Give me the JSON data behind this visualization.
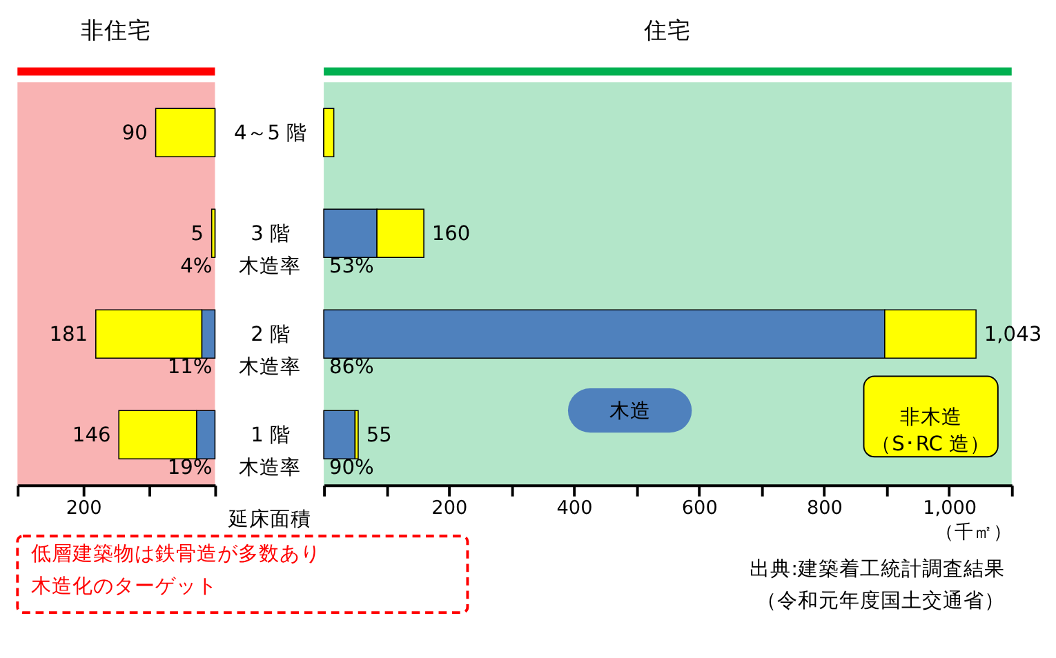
{
  "chart_data": [
    {
      "type": "bar",
      "title": "非住宅",
      "orientation": "horizontal",
      "stacked": true,
      "tick_labels": "x",
      "categories": [
        null,
        null,
        null,
        null
      ],
      "series": [
        {
          "color": "#4f81bd",
          "values": [
            0,
            0,
            20,
            28
          ]
        },
        {
          "color": "#ffff00",
          "values": [
            90,
            5,
            161,
            118
          ]
        }
      ],
      "totals": [
        "90",
        "5",
        "181",
        "146"
      ],
      "xlim": [
        300,
        0
      ],
      "xticks": [
        {
          "value": 0,
          "label": null
        },
        {
          "value": 100,
          "label": null
        },
        200,
        {
          "value": 300,
          "label": null
        }
      ],
      "grid": false,
      "annotations": [
        "4%",
        "11%",
        "19%",
        "低層建築物は鉄骨造が多数あり",
        "木造化のターゲット"
      ]
    },
    {
      "type": "bar",
      "title": "住宅",
      "orientation": "horizontal",
      "stacked": true,
      "categories": [
        "4～5 階",
        "3 階",
        "2 階",
        "1 階"
      ],
      "series": [
        {
          "name": "木造",
          "color": "#4f81bd",
          "values": [
            0,
            85,
            897,
            50
          ]
        },
        {
          "name": "非木造（S･RC 造）",
          "color": "#ffff00",
          "values": [
            16,
            75,
            146,
            5
          ]
        }
      ],
      "totals": [
        null,
        "160",
        "1,043",
        "55"
      ],
      "xlim": [
        0,
        1100
      ],
      "xticks": [
        {
          "value": 0,
          "label": null
        },
        {
          "value": 100,
          "label": null
        },
        200,
        {
          "value": 300,
          "label": null
        },
        400,
        {
          "value": 500,
          "label": null
        },
        600,
        {
          "value": 700,
          "label": null
        },
        800,
        {
          "value": 900,
          "label": null
        },
        {
          "value": 1000,
          "label": "1,000"
        },
        {
          "value": 1100,
          "label": null
        }
      ],
      "xlabel": "（千㎡）",
      "grid": false,
      "annotations": [
        "木造率",
        "木造率",
        "木造率",
        "53%",
        "86%",
        "90%",
        "延床面積",
        "出典:建築着工統計調査結果",
        "（令和元年度国土交通省）"
      ]
    }
  ]
}
